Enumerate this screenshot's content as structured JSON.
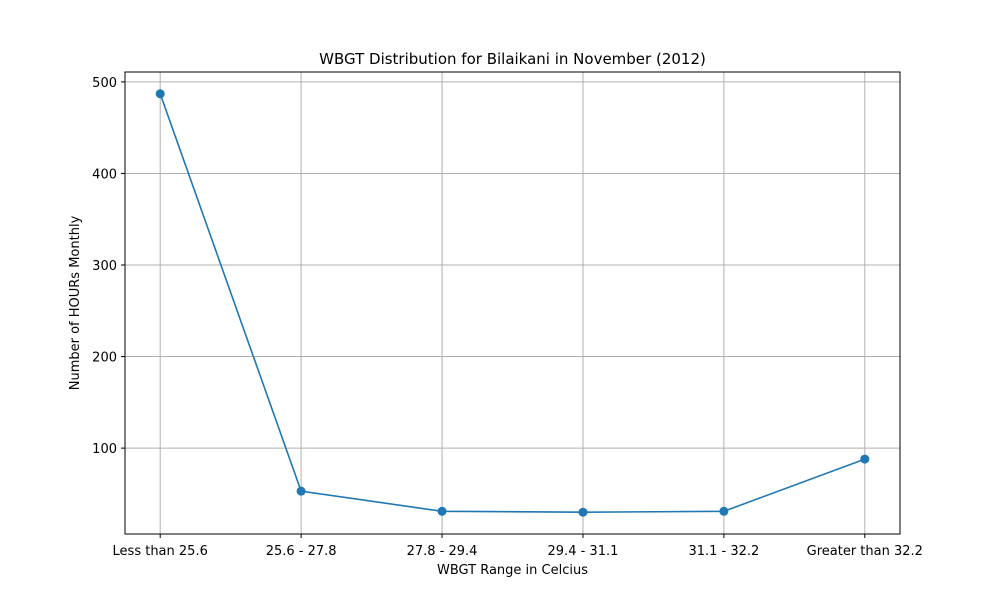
{
  "chart_data": {
    "type": "line",
    "title": "WBGT Distribution for Bilaikani in November (2012)",
    "xlabel": "WBGT Range in Celcius",
    "ylabel": "Number of HOURs Monthly",
    "categories": [
      "Less than 25.6",
      "25.6 - 27.8",
      "27.8 - 29.4",
      "29.4 - 31.1",
      "31.1 - 32.2",
      "Greater than 32.2"
    ],
    "series": [
      {
        "values": [
          487,
          53,
          31,
          30,
          31,
          88
        ],
        "color": "#1f77b4",
        "marker": "circle"
      }
    ],
    "ylim": [
      6.2,
      510.8
    ],
    "yticks": [
      100,
      200,
      300,
      400,
      500
    ],
    "grid": true,
    "legend": "none"
  }
}
